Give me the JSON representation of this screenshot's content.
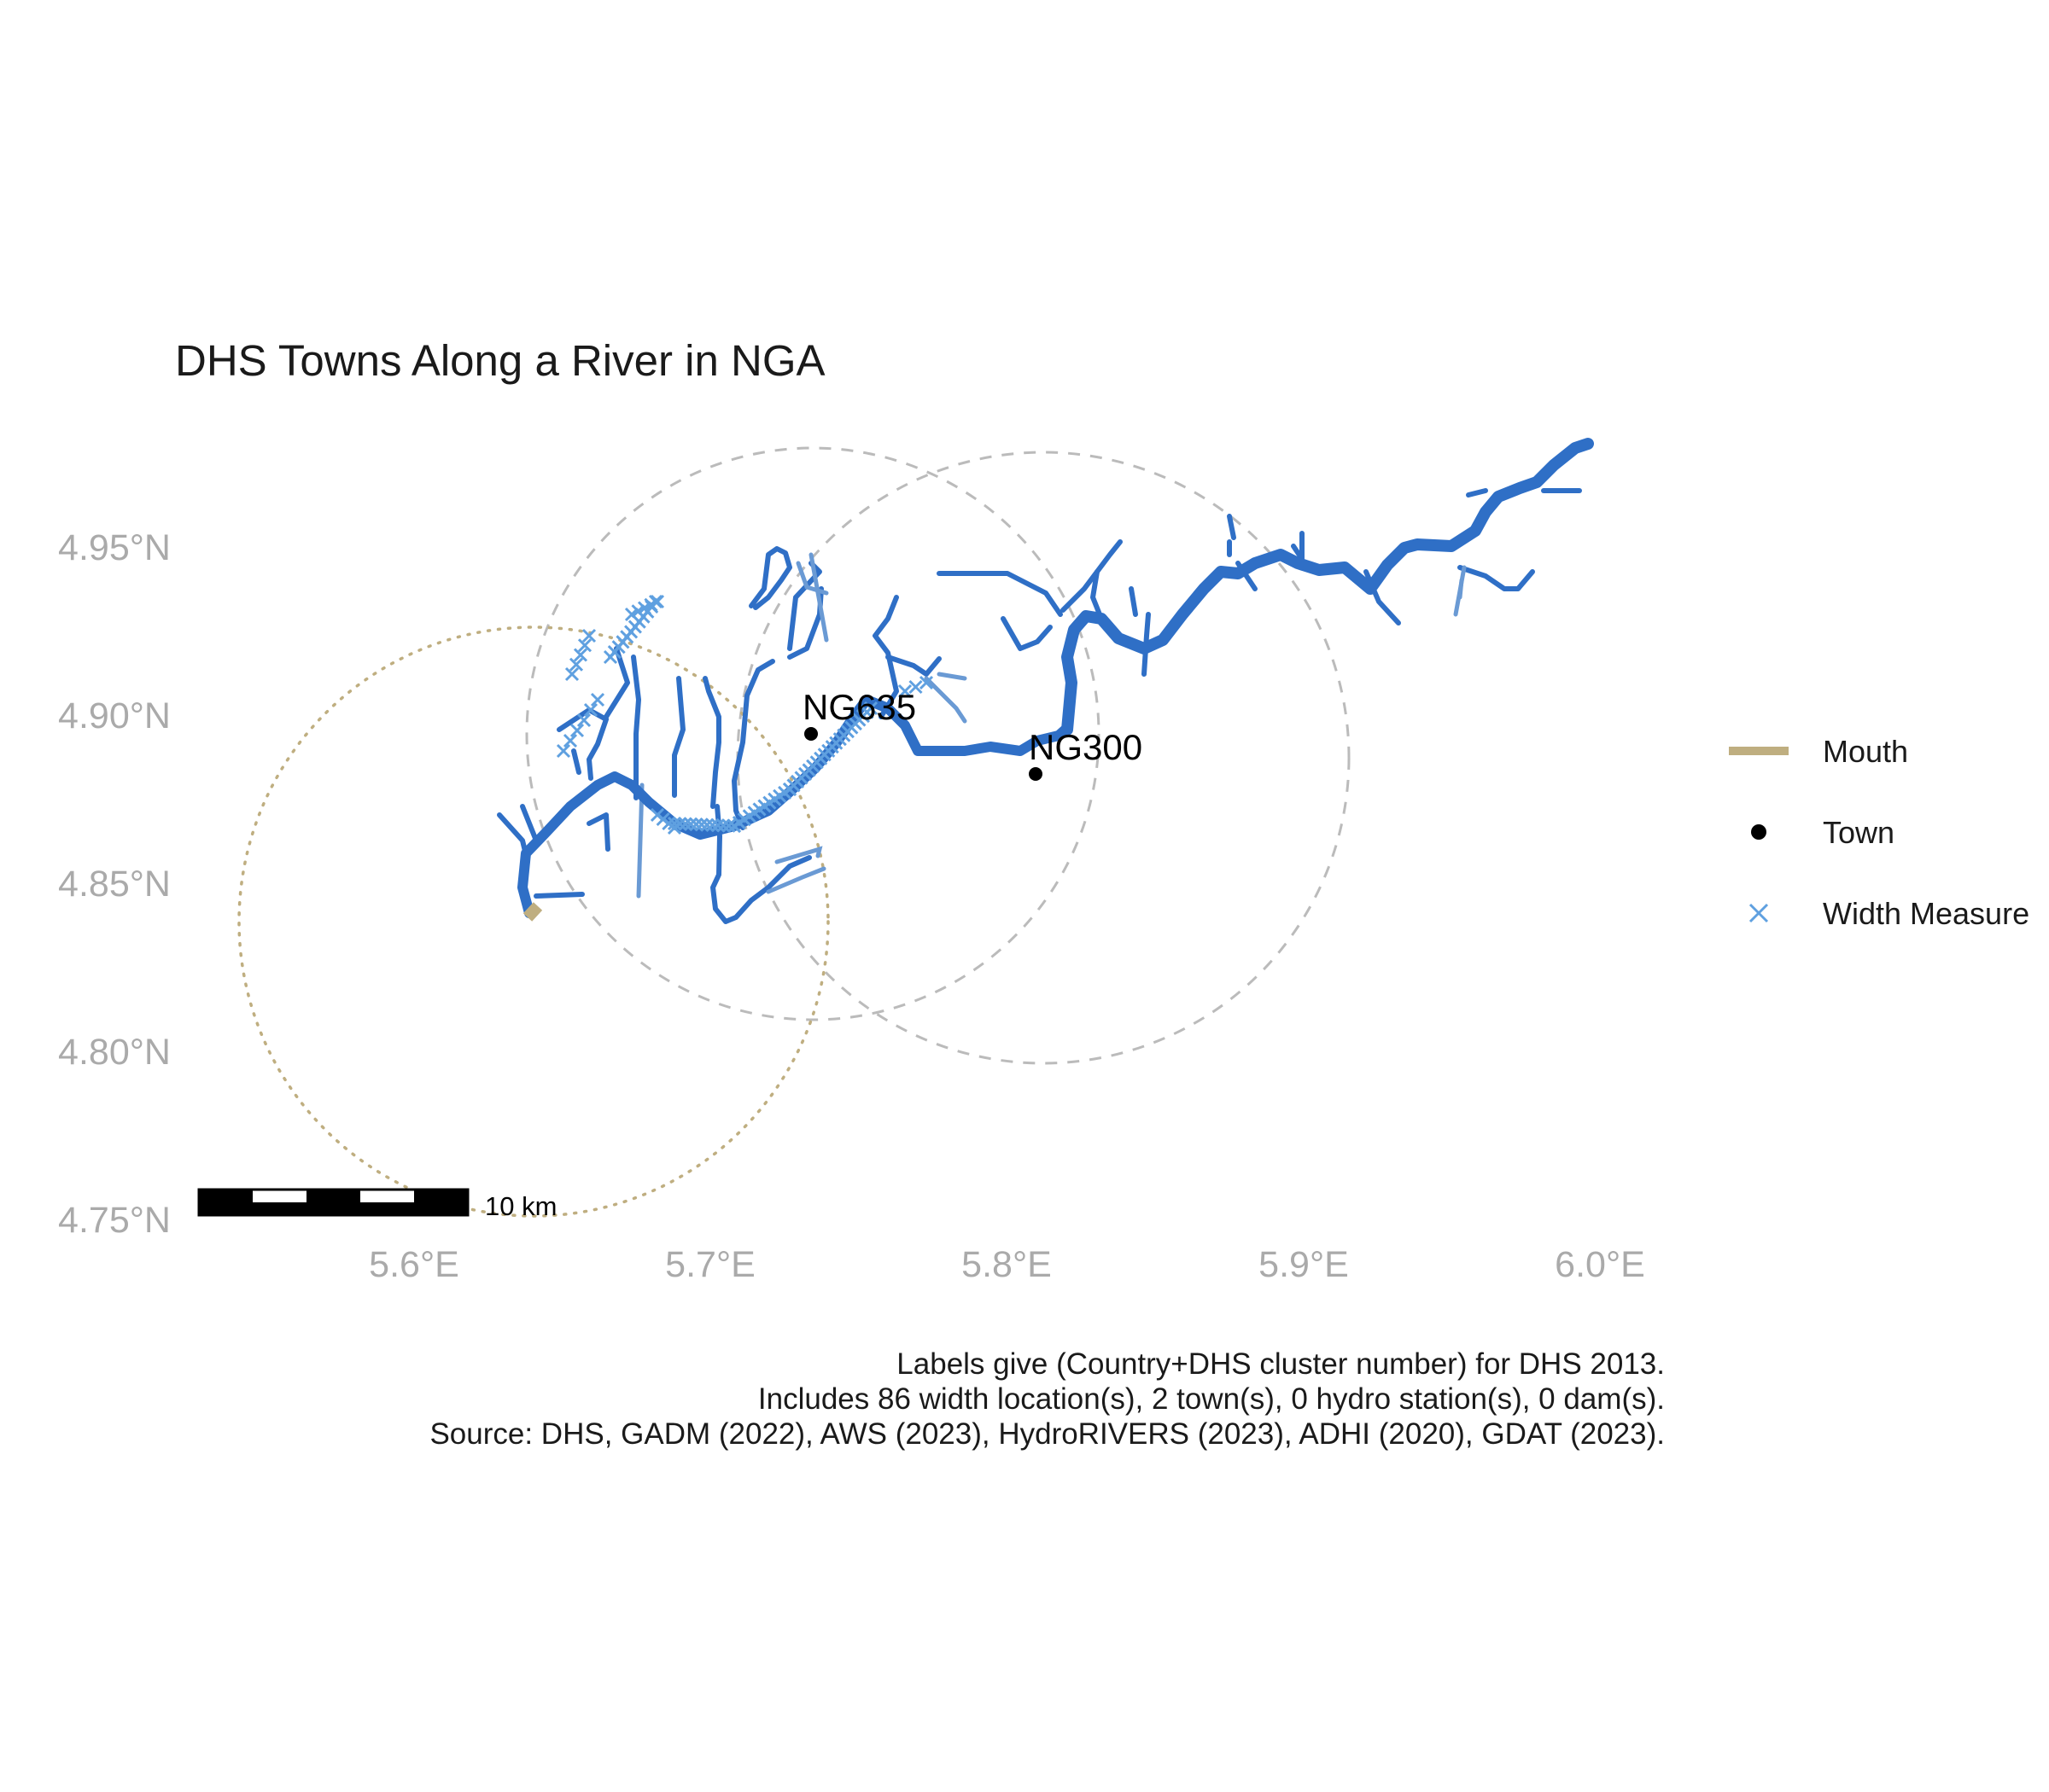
{
  "title": "DHS Towns Along a River in NGA",
  "axes": {
    "y_ticks": [
      "4.95°N",
      "4.90°N",
      "4.85°N",
      "4.80°N",
      "4.75°N"
    ],
    "x_ticks": [
      "5.6°E",
      "5.7°E",
      "5.8°E",
      "5.9°E",
      "6.0°E"
    ]
  },
  "legend": {
    "items": [
      {
        "label": "Mouth",
        "color": "#bfae80"
      },
      {
        "label": "Town",
        "color": "#000000"
      },
      {
        "label": "Width Measure",
        "color": "#5fa0e0"
      }
    ]
  },
  "towns": [
    {
      "label": "NG635",
      "lon": 5.733,
      "lat": 4.895
    },
    {
      "label": "NG300",
      "lon": 5.808,
      "lat": 4.883
    }
  ],
  "scale_bar": {
    "label": "10 km"
  },
  "caption": {
    "line1": "Labels give (Country+DHS cluster number) for DHS 2013.",
    "line2": "Includes 86 width location(s), 2 town(s), 0 hydro station(s), 0 dam(s).",
    "line3": "Source: DHS, GADM (2022), AWS (2023), HydroRIVERS (2023), ADHI (2020), GDAT (2023)."
  },
  "colors": {
    "river": "#2f6fc6",
    "tributary_light": "#6a9ad4",
    "width_measure": "#5fa0e0",
    "mouth": "#bfae80",
    "buffer": "#bbbbbb"
  }
}
